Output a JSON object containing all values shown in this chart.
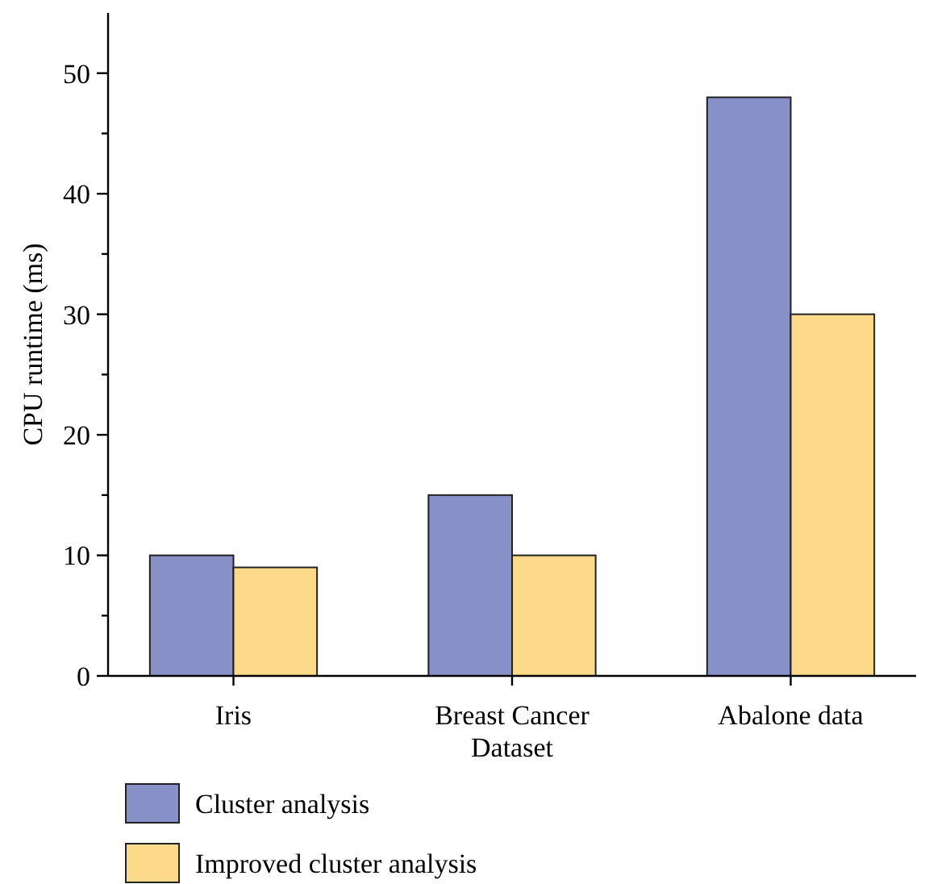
{
  "chart_data": {
    "type": "bar",
    "ylabel": "CPU runtime (ms)",
    "categories": [
      "Iris",
      "Breast Cancer Dataset",
      "Abalone data"
    ],
    "series": [
      {
        "name": "Cluster analysis",
        "color": "#8791c8",
        "values": [
          10,
          15,
          48
        ]
      },
      {
        "name": "Improved cluster analysis",
        "color": "#fdd98a",
        "values": [
          9,
          10,
          30
        ]
      }
    ],
    "ylim": [
      0,
      55
    ],
    "yticks": [
      0,
      {
        "value": 5,
        "label": null
      },
      10,
      {
        "value": 15,
        "label": null
      },
      20,
      {
        "value": 25,
        "label": null
      },
      30,
      {
        "value": 35,
        "label": null
      },
      40,
      {
        "value": 45,
        "label": null
      },
      50
    ],
    "grid": false,
    "legend": "bottom"
  }
}
